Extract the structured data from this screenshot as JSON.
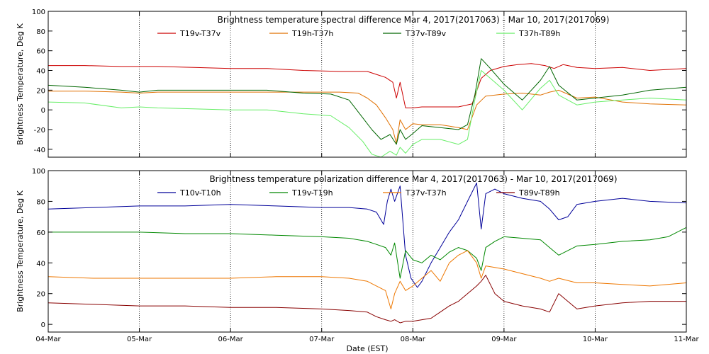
{
  "chart_data": [
    {
      "type": "line",
      "title": "Brightness temperature spectral difference    Mar  4, 2017(2017063) - Mar 10, 2017(2017069)",
      "ylabel": "Brightness Temperature, Deg K",
      "xlabel": "",
      "ylim": [
        -48,
        100
      ],
      "yticks": [
        -40,
        -20,
        0,
        20,
        40,
        60,
        80,
        100
      ],
      "xlim": [
        0,
        7
      ],
      "xticks": [
        0,
        1,
        2,
        3,
        4,
        5,
        6,
        7
      ],
      "x_tick_labels": [
        "04-Mar",
        "05-Mar",
        "06-Mar",
        "07-Mar",
        "08-Mar",
        "09-Mar",
        "10-Mar",
        "11-Mar"
      ],
      "grid": "vertical dotted",
      "series": [
        {
          "name": "T19v-T37v",
          "color": "#cc0000",
          "x": [
            0,
            0.4,
            0.8,
            1.2,
            1.6,
            2.0,
            2.4,
            2.8,
            3.2,
            3.5,
            3.6,
            3.7,
            3.78,
            3.82,
            3.86,
            3.92,
            4.0,
            4.1,
            4.3,
            4.5,
            4.65,
            4.75,
            4.85,
            5.0,
            5.15,
            5.3,
            5.45,
            5.55,
            5.65,
            5.8,
            6.0,
            6.3,
            6.6,
            7.0
          ],
          "values": [
            45,
            45,
            44,
            44,
            43,
            42,
            42,
            40,
            39,
            39,
            36,
            33,
            28,
            12,
            28,
            2,
            2,
            3,
            3,
            3,
            6,
            32,
            40,
            44,
            46,
            47,
            45,
            42,
            46,
            43,
            42,
            43,
            40,
            42
          ]
        },
        {
          "name": "T19h-T37h",
          "color": "#e07000",
          "x": [
            0,
            0.4,
            0.8,
            1.0,
            1.2,
            1.6,
            2.0,
            2.4,
            2.8,
            3.2,
            3.4,
            3.5,
            3.6,
            3.7,
            3.78,
            3.82,
            3.86,
            3.92,
            4.0,
            4.1,
            4.3,
            4.5,
            4.6,
            4.7,
            4.8,
            5.0,
            5.2,
            5.4,
            5.5,
            5.6,
            5.8,
            6.0,
            6.3,
            6.6,
            7.0
          ],
          "values": [
            19,
            19,
            18,
            17,
            18,
            18,
            18,
            18,
            18,
            18,
            17,
            12,
            5,
            -8,
            -20,
            -34,
            -10,
            -20,
            -14,
            -15,
            -15,
            -18,
            -20,
            5,
            14,
            16,
            17,
            15,
            18,
            20,
            12,
            13,
            8,
            6,
            5
          ]
        },
        {
          "name": "T37v-T89v",
          "color": "#006600",
          "x": [
            0,
            0.4,
            0.8,
            1.0,
            1.2,
            1.6,
            2.0,
            2.4,
            2.8,
            3.1,
            3.3,
            3.45,
            3.55,
            3.65,
            3.75,
            3.82,
            3.86,
            3.92,
            4.0,
            4.1,
            4.3,
            4.5,
            4.6,
            4.68,
            4.75,
            4.85,
            5.0,
            5.2,
            5.4,
            5.5,
            5.6,
            5.8,
            6.0,
            6.3,
            6.6,
            7.0
          ],
          "values": [
            25,
            23,
            20,
            18,
            20,
            20,
            20,
            20,
            17,
            16,
            10,
            -8,
            -20,
            -30,
            -25,
            -35,
            -20,
            -30,
            -24,
            -16,
            -18,
            -20,
            -15,
            15,
            52,
            42,
            26,
            10,
            30,
            44,
            25,
            10,
            12,
            15,
            20,
            23
          ]
        },
        {
          "name": "T37h-T89h",
          "color": "#66ee66",
          "x": [
            0,
            0.4,
            0.8,
            1.0,
            1.2,
            1.6,
            2.0,
            2.4,
            2.8,
            3.1,
            3.3,
            3.45,
            3.55,
            3.65,
            3.75,
            3.82,
            3.86,
            3.92,
            4.0,
            4.1,
            4.3,
            4.5,
            4.6,
            4.68,
            4.75,
            4.85,
            5.0,
            5.2,
            5.4,
            5.5,
            5.6,
            5.8,
            6.0,
            6.3,
            6.6,
            7.0
          ],
          "values": [
            8,
            7,
            2,
            3,
            2,
            1,
            0,
            0,
            -4,
            -6,
            -18,
            -32,
            -45,
            -48,
            -42,
            -46,
            -38,
            -44,
            -35,
            -30,
            -30,
            -35,
            -30,
            10,
            40,
            32,
            20,
            0,
            22,
            30,
            15,
            5,
            8,
            10,
            12,
            10
          ]
        }
      ]
    },
    {
      "type": "line",
      "title": "Brightness temperature polarization difference    Mar  4, 2017(2017063) - Mar 10, 2017(2017069)",
      "ylabel": "Brightness Temperature, Deg K",
      "xlabel": "Date (EST)",
      "ylim": [
        -5,
        100
      ],
      "yticks": [
        0,
        20,
        40,
        60,
        80,
        100
      ],
      "xlim": [
        0,
        7
      ],
      "xticks": [
        0,
        1,
        2,
        3,
        4,
        5,
        6,
        7
      ],
      "x_tick_labels": [
        "04-Mar",
        "05-Mar",
        "06-Mar",
        "07-Mar",
        "08-Mar",
        "09-Mar",
        "10-Mar",
        "11-Mar"
      ],
      "grid": "vertical dotted",
      "series": [
        {
          "name": "T10v-T10h",
          "color": "#000099",
          "x": [
            0,
            0.5,
            1.0,
            1.5,
            2.0,
            2.5,
            3.0,
            3.3,
            3.5,
            3.6,
            3.68,
            3.72,
            3.76,
            3.8,
            3.86,
            3.92,
            3.98,
            4.05,
            4.1,
            4.2,
            4.3,
            4.4,
            4.5,
            4.6,
            4.7,
            4.75,
            4.8,
            4.9,
            5.0,
            5.2,
            5.4,
            5.5,
            5.6,
            5.7,
            5.8,
            6.0,
            6.3,
            6.6,
            7.0
          ],
          "values": [
            75,
            76,
            77,
            77,
            78,
            77,
            76,
            76,
            75,
            73,
            65,
            80,
            88,
            80,
            90,
            45,
            30,
            24,
            28,
            40,
            50,
            60,
            68,
            80,
            92,
            62,
            85,
            88,
            85,
            82,
            80,
            75,
            68,
            70,
            78,
            80,
            82,
            80,
            79
          ]
        },
        {
          "name": "T19v-T19h",
          "color": "#008800",
          "x": [
            0,
            0.5,
            1.0,
            1.5,
            2.0,
            2.5,
            3.0,
            3.3,
            3.5,
            3.6,
            3.7,
            3.76,
            3.8,
            3.86,
            3.92,
            4.0,
            4.1,
            4.2,
            4.3,
            4.4,
            4.5,
            4.6,
            4.7,
            4.75,
            4.8,
            4.9,
            5.0,
            5.2,
            5.4,
            5.5,
            5.6,
            5.7,
            5.8,
            6.0,
            6.3,
            6.6,
            6.8,
            7.0
          ],
          "values": [
            60,
            60,
            60,
            59,
            59,
            58,
            57,
            56,
            54,
            52,
            50,
            45,
            53,
            30,
            48,
            42,
            40,
            45,
            42,
            47,
            50,
            48,
            43,
            35,
            50,
            54,
            57,
            56,
            55,
            50,
            45,
            48,
            51,
            52,
            54,
            55,
            57,
            63
          ]
        },
        {
          "name": "T37v-T37h",
          "color": "#ee7700",
          "x": [
            0,
            0.5,
            1.0,
            1.5,
            2.0,
            2.5,
            3.0,
            3.3,
            3.5,
            3.6,
            3.7,
            3.76,
            3.8,
            3.86,
            3.92,
            4.0,
            4.1,
            4.2,
            4.3,
            4.4,
            4.5,
            4.6,
            4.7,
            4.75,
            4.8,
            4.9,
            5.0,
            5.2,
            5.4,
            5.5,
            5.6,
            5.8,
            6.0,
            6.3,
            6.6,
            7.0
          ],
          "values": [
            31,
            30,
            30,
            30,
            30,
            31,
            31,
            30,
            28,
            25,
            22,
            10,
            20,
            28,
            22,
            25,
            30,
            35,
            28,
            40,
            45,
            48,
            40,
            30,
            38,
            37,
            36,
            33,
            30,
            28,
            30,
            27,
            27,
            26,
            25,
            27
          ]
        },
        {
          "name": "T89v-T89h",
          "color": "#880000",
          "x": [
            0,
            0.5,
            1.0,
            1.5,
            2.0,
            2.5,
            3.0,
            3.3,
            3.5,
            3.6,
            3.7,
            3.76,
            3.8,
            3.86,
            3.92,
            4.0,
            4.1,
            4.2,
            4.3,
            4.4,
            4.5,
            4.6,
            4.7,
            4.75,
            4.8,
            4.9,
            5.0,
            5.2,
            5.4,
            5.5,
            5.6,
            5.8,
            6.0,
            6.3,
            6.6,
            7.0
          ],
          "values": [
            14,
            13,
            12,
            12,
            11,
            11,
            10,
            9,
            8,
            5,
            3,
            2,
            3,
            1,
            2,
            2,
            3,
            4,
            8,
            12,
            15,
            20,
            25,
            28,
            32,
            20,
            15,
            12,
            10,
            8,
            20,
            10,
            12,
            14,
            15,
            15
          ]
        }
      ]
    }
  ]
}
